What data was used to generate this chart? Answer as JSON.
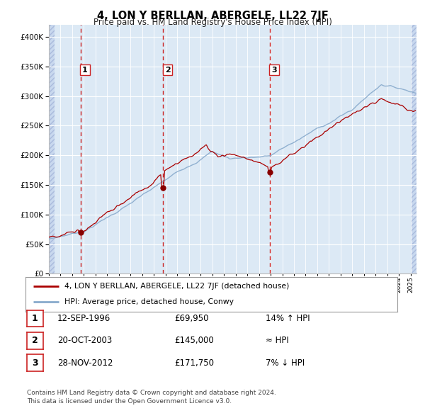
{
  "title": "4, LON Y BERLLAN, ABERGELE, LL22 7JF",
  "subtitle": "Price paid vs. HM Land Registry's House Price Index (HPI)",
  "background_color": "#dce9f5",
  "grid_color": "#ffffff",
  "sale_dates_num": [
    1996.703,
    2003.789,
    2012.914
  ],
  "sale_prices": [
    69950,
    145000,
    171750
  ],
  "sale_labels": [
    "1",
    "2",
    "3"
  ],
  "sale_annotations": [
    "14% ↑ HPI",
    "≈ HPI",
    "7% ↓ HPI"
  ],
  "sale_date_labels": [
    "12-SEP-1996",
    "20-OCT-2003",
    "28-NOV-2012"
  ],
  "sale_price_labels": [
    "£69,950",
    "£145,000",
    "£171,750"
  ],
  "legend_line1": "4, LON Y BERLLAN, ABERGELE, LL22 7JF (detached house)",
  "legend_line2": "HPI: Average price, detached house, Conwy",
  "footer": "Contains HM Land Registry data © Crown copyright and database right 2024.\nThis data is licensed under the Open Government Licence v3.0.",
  "line_color_red": "#aa0000",
  "line_color_blue": "#88aacc",
  "ylim": [
    0,
    420000
  ],
  "yticks": [
    0,
    50000,
    100000,
    150000,
    200000,
    250000,
    300000,
    350000,
    400000
  ],
  "xlim_start": 1994.0,
  "xlim_end": 2025.5,
  "hatch_color": "#c8d8ee"
}
